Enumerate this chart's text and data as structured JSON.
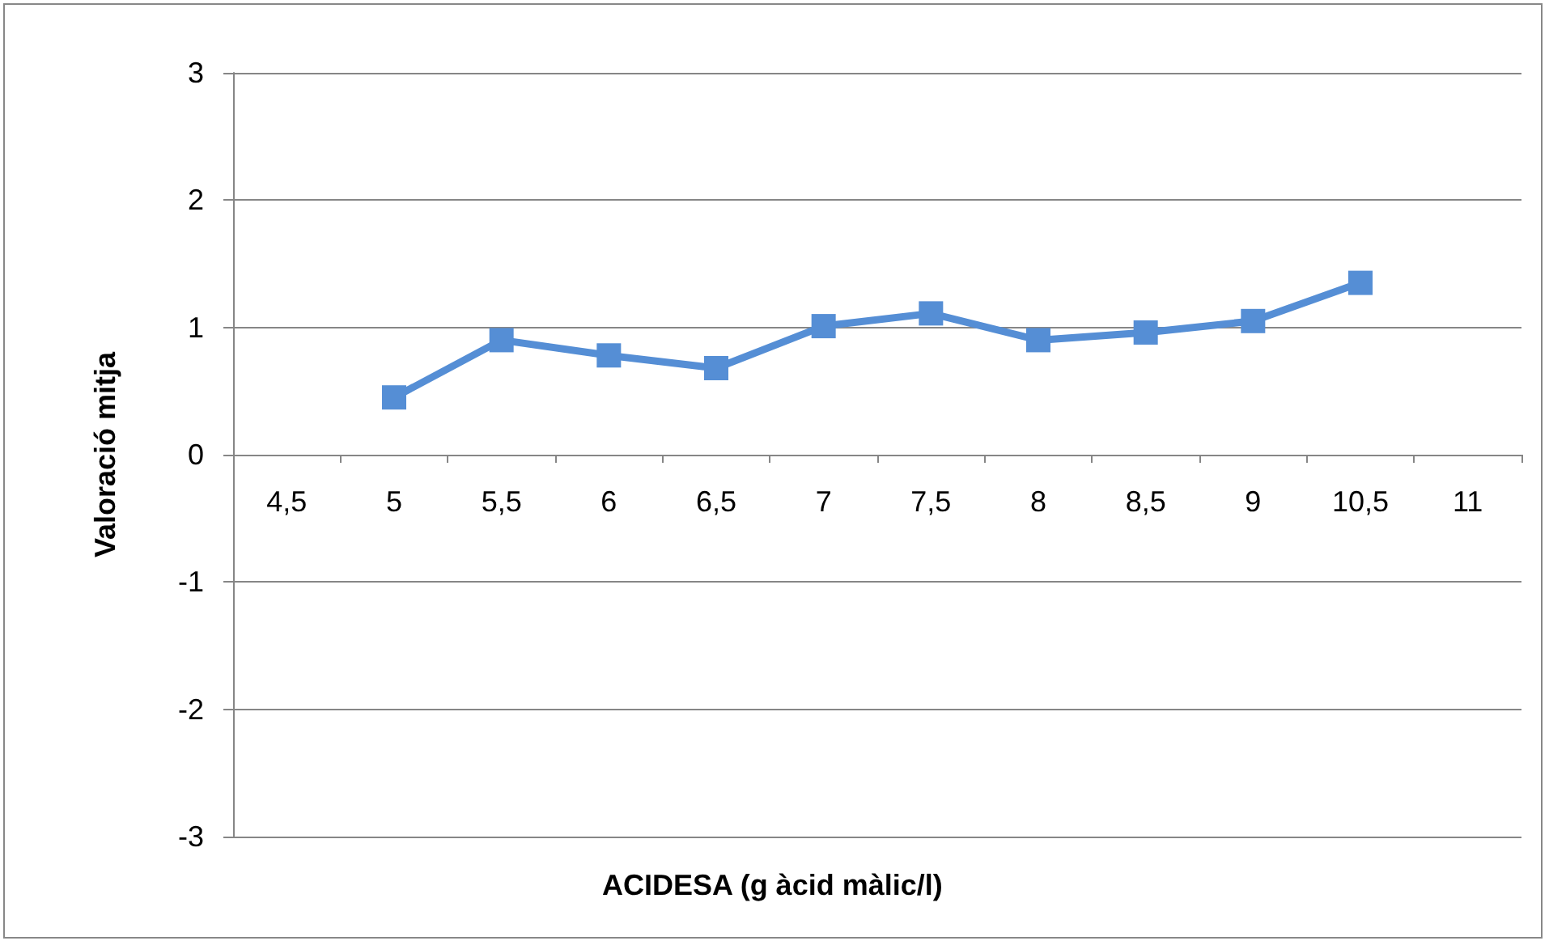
{
  "chart_data": {
    "type": "line",
    "xlabel": "ACIDESA (g àcid màlic/l)",
    "ylabel": "Valoració mitja",
    "categories": [
      "4,5",
      "5",
      "5,5",
      "6",
      "6,5",
      "7",
      "7,5",
      "8",
      "8,5",
      "9",
      "10,5",
      "11"
    ],
    "series": [
      {
        "color": "#558ed5",
        "values": [
          null,
          0.45,
          0.9,
          0.78,
          0.68,
          1.01,
          1.11,
          0.9,
          0.96,
          1.05,
          1.35,
          null
        ]
      }
    ],
    "ylim": [
      -3,
      3
    ],
    "yticks": [
      -3,
      -2,
      -1,
      0,
      1,
      2,
      3
    ],
    "grid": "y",
    "marker": "square",
    "line_style": "solid"
  }
}
